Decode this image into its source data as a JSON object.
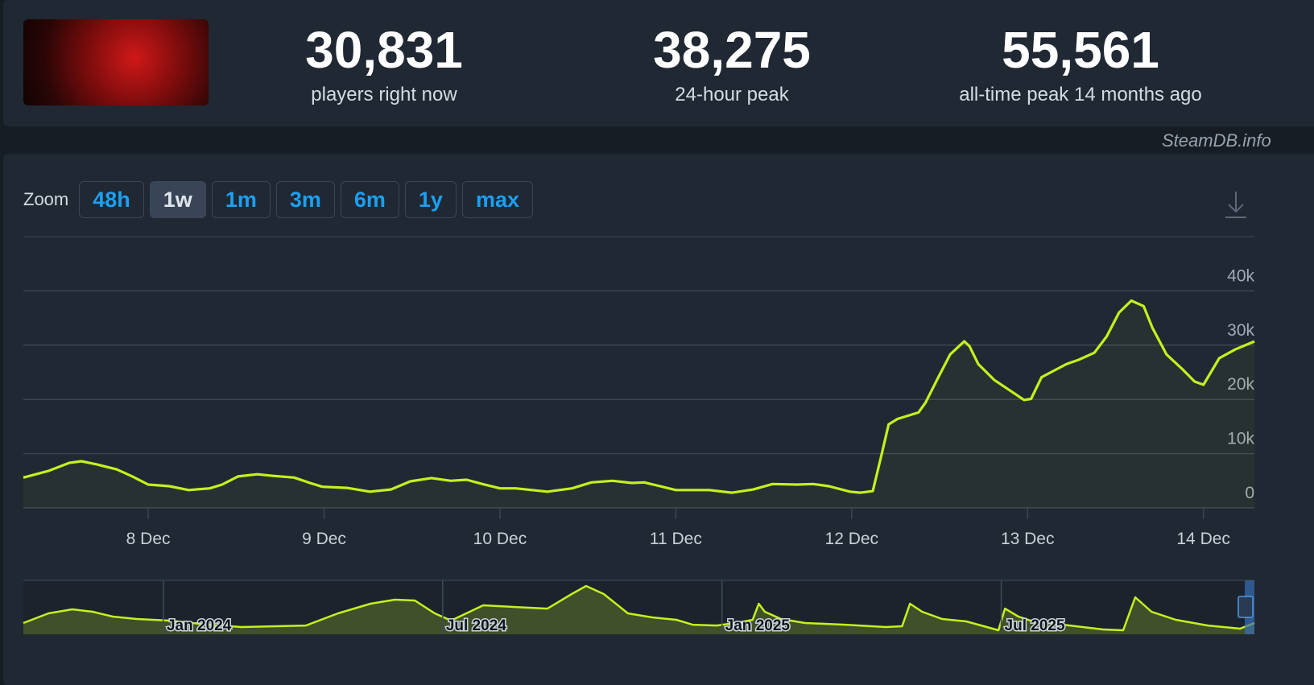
{
  "header": {
    "stats": [
      {
        "value": "30,831",
        "label": "players right now"
      },
      {
        "value": "38,275",
        "label": "24-hour peak"
      },
      {
        "value": "55,561",
        "label": "all-time peak 14 months ago"
      }
    ]
  },
  "watermark": "SteamDB.info",
  "zoom": {
    "label": "Zoom",
    "buttons": [
      {
        "label": "48h"
      },
      {
        "label": "1w",
        "active": true
      },
      {
        "label": "1m"
      },
      {
        "label": "3m"
      },
      {
        "label": "6m"
      },
      {
        "label": "1y"
      },
      {
        "label": "max"
      }
    ]
  },
  "chart_data": [
    {
      "type": "line",
      "color": "#c6f01e",
      "x": [
        7.29,
        7.43,
        7.55,
        7.62,
        7.71,
        7.82,
        7.91,
        8.0,
        8.12,
        8.23,
        8.35,
        8.42,
        8.51,
        8.62,
        8.71,
        8.83,
        8.92,
        8.99,
        9.13,
        9.26,
        9.38,
        9.49,
        9.61,
        9.72,
        9.81,
        9.9,
        10.0,
        10.09,
        10.27,
        10.41,
        10.52,
        10.64,
        10.75,
        10.82,
        10.91,
        11.0,
        11.19,
        11.32,
        11.44,
        11.55,
        11.69,
        11.78,
        11.87,
        11.99,
        12.05,
        12.12,
        12.17,
        12.21,
        12.26,
        12.38,
        12.42,
        12.49,
        12.56,
        12.64,
        12.67,
        12.72,
        12.81,
        12.92,
        12.98,
        13.02,
        13.08,
        13.15,
        13.22,
        13.29,
        13.38,
        13.45,
        13.52,
        13.59,
        13.66,
        13.71,
        13.79,
        13.88,
        13.95,
        14.0,
        14.09,
        14.18,
        14.29
      ],
      "values": [
        5600,
        6800,
        8300,
        8600,
        8000,
        7100,
        5800,
        4300,
        4000,
        3300,
        3600,
        4300,
        5800,
        6200,
        5900,
        5600,
        4600,
        3900,
        3700,
        3000,
        3400,
        4900,
        5500,
        5000,
        5200,
        4400,
        3600,
        3600,
        3000,
        3600,
        4700,
        5000,
        4600,
        4700,
        4000,
        3300,
        3300,
        2800,
        3400,
        4400,
        4300,
        4400,
        4000,
        3000,
        2800,
        3100,
        9800,
        15400,
        16400,
        17600,
        19400,
        23900,
        28300,
        30700,
        29800,
        26500,
        23600,
        21200,
        19900,
        20100,
        24100,
        25300,
        26500,
        27300,
        28600,
        31600,
        36000,
        38200,
        37200,
        33200,
        28300,
        25600,
        23300,
        22700,
        27600,
        29200,
        30700
      ],
      "xlim": [
        7.29,
        14.29
      ],
      "xticks": [
        {
          "value": 8,
          "label": "8 Dec"
        },
        {
          "value": 9,
          "label": "9 Dec"
        },
        {
          "value": 10,
          "label": "10 Dec"
        },
        {
          "value": 11,
          "label": "11 Dec"
        },
        {
          "value": 12,
          "label": "12 Dec"
        },
        {
          "value": 13,
          "label": "13 Dec"
        },
        {
          "value": 14,
          "label": "14 Dec"
        }
      ],
      "ylim": [
        0,
        50000
      ],
      "yticks": [
        0,
        {
          "value": 10000,
          "label": "10k"
        },
        {
          "value": 20000,
          "label": "20k"
        },
        {
          "value": 30000,
          "label": "30k"
        },
        {
          "value": 40000,
          "label": "40k"
        }
      ],
      "grid": true
    },
    {
      "type": "area",
      "color": "#c6f01e",
      "x": [
        -3.01,
        -2.47,
        -1.96,
        -1.52,
        -1.09,
        -0.57,
        0.12,
        0.99,
        1.68,
        3.06,
        3.75,
        4.45,
        4.97,
        5.4,
        5.83,
        6.18,
        6.87,
        7.56,
        8.25,
        8.77,
        9.08,
        9.46,
        9.98,
        10.5,
        11.02,
        11.37,
        11.89,
        12.4,
        12.66,
        12.79,
        12.92,
        13.27,
        13.79,
        14.65,
        15.52,
        15.87,
        16.04,
        16.3,
        16.73,
        17.25,
        17.94,
        18.08,
        18.37,
        18.63,
        19.33,
        20.19,
        20.62,
        20.88,
        21.23,
        21.75,
        22.44,
        23.13,
        23.44
      ],
      "values": [
        12500,
        23300,
        27800,
        25100,
        19700,
        17000,
        15200,
        10700,
        8100,
        9800,
        23300,
        34000,
        38500,
        37600,
        23300,
        15200,
        32200,
        30400,
        28600,
        44800,
        53700,
        44800,
        23300,
        18800,
        16100,
        10700,
        9800,
        13400,
        16100,
        34000,
        25100,
        17000,
        12500,
        10700,
        8100,
        9000,
        34000,
        25100,
        17000,
        14300,
        4500,
        28600,
        19700,
        15200,
        10700,
        5400,
        4500,
        41200,
        25100,
        16100,
        9800,
        6300,
        12500
      ],
      "xlim": [
        -3.01,
        23.44
      ],
      "xticks": [
        {
          "value": 0,
          "label": "Jan 2024"
        },
        {
          "value": 6,
          "label": "Jul 2024"
        },
        {
          "value": 12,
          "label": "Jan 2025"
        },
        {
          "value": 18,
          "label": "Jul 2025"
        }
      ],
      "ylim": [
        0,
        60000
      ]
    }
  ]
}
